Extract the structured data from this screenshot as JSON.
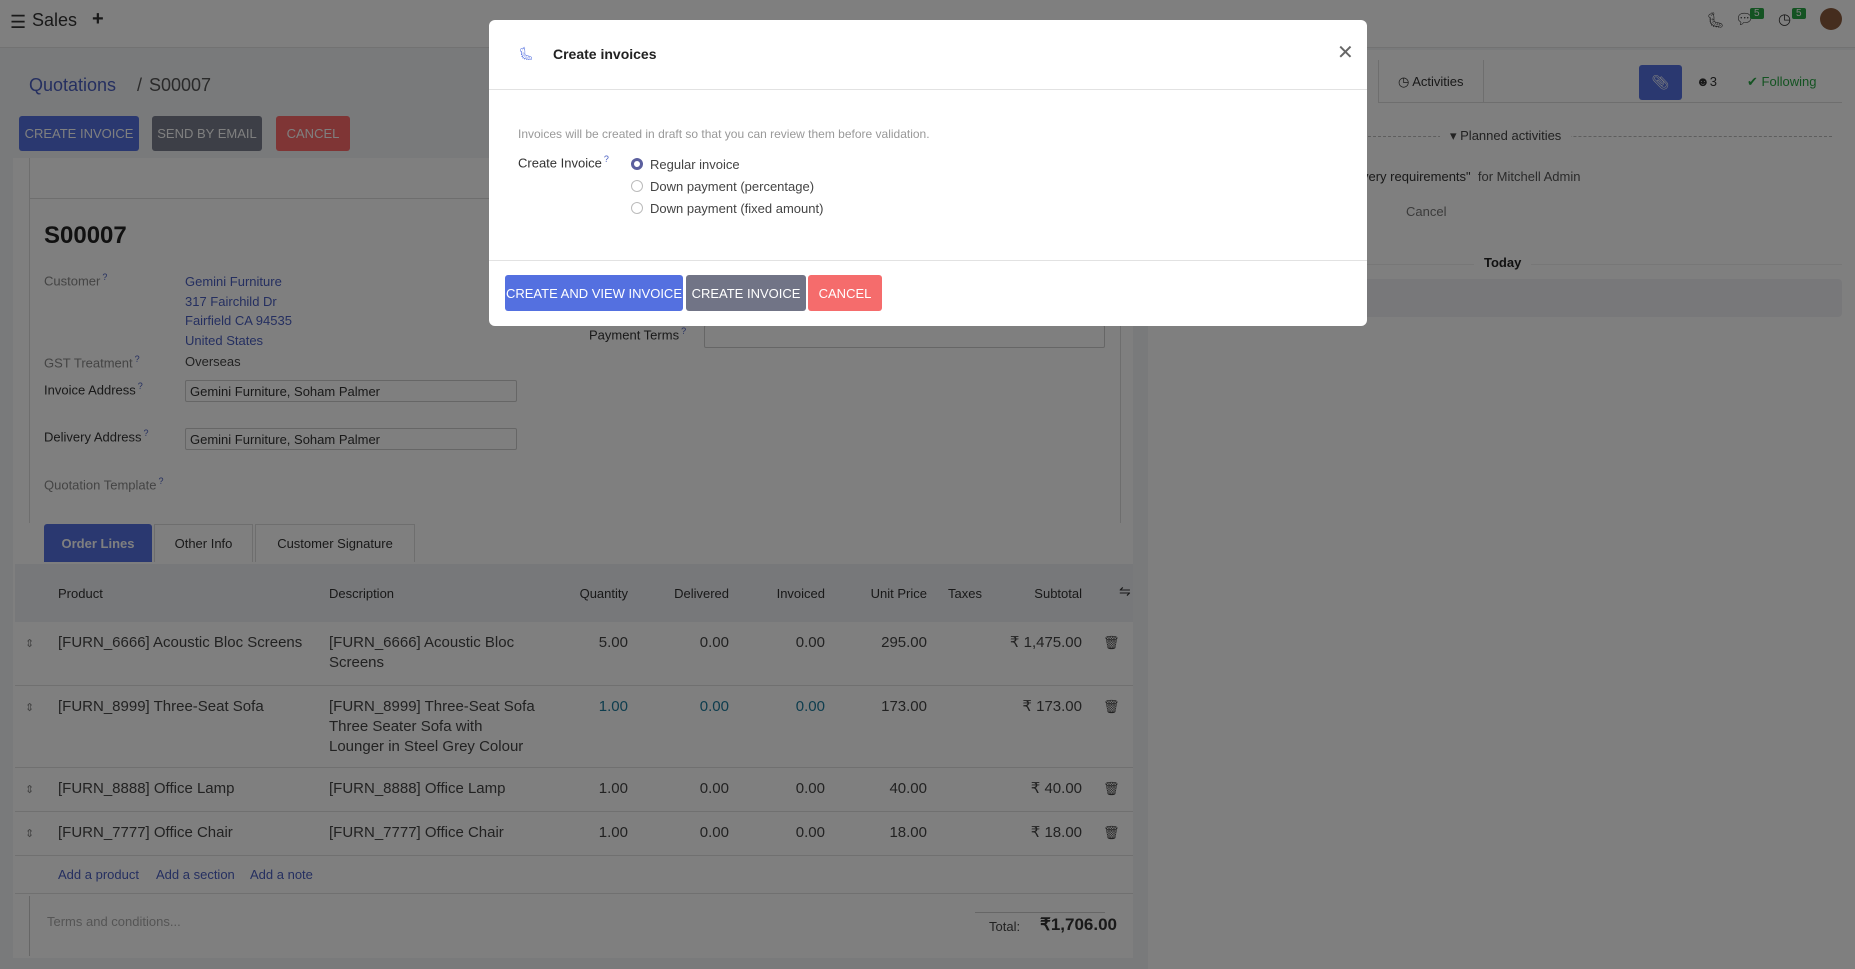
{
  "nav": {
    "app": "Sales",
    "chat_badge": "5",
    "activity_badge": "5"
  },
  "breadcrumb": {
    "parent": "Quotations",
    "current": "S00007"
  },
  "actions": {
    "create_invoice": "CREATE INVOICE",
    "send_email": "SEND BY EMAIL",
    "cancel": "CANCEL"
  },
  "form": {
    "title": "S00007",
    "customer_label": "Customer",
    "customer_lines": [
      "Gemini Furniture",
      "317 Fairchild Dr",
      "Fairfield CA 94535",
      "United States"
    ],
    "gst_label": "GST Treatment",
    "gst_value": "Overseas",
    "invoice_address_label": "Invoice Address",
    "invoice_address": "Gemini Furniture, Soham Palmer",
    "delivery_address_label": "Delivery Address",
    "delivery_address": "Gemini Furniture, Soham Palmer",
    "template_label": "Quotation Template",
    "payment_terms_label": "Payment Terms",
    "help": "?"
  },
  "tabs": [
    "Order Lines",
    "Other Info",
    "Customer Signature"
  ],
  "table": {
    "headers": [
      "Product",
      "Description",
      "Quantity",
      "Delivered",
      "Invoiced",
      "Unit Price",
      "Taxes",
      "Subtotal"
    ],
    "rows": [
      {
        "product": "[FURN_6666] Acoustic Bloc Screens",
        "description": "[FURN_6666] Acoustic Bloc Screens",
        "qty": "5.00",
        "delivered": "0.00",
        "invoiced": "0.00",
        "price": "295.00",
        "subtotal": "₹ 1,475.00"
      },
      {
        "product": "[FURN_8999] Three-Seat Sofa",
        "description": "[FURN_8999] Three-Seat Sofa Three Seater Sofa with Lounger in Steel Grey Colour",
        "qty": "1.00",
        "delivered": "0.00",
        "invoiced": "0.00",
        "price": "173.00",
        "subtotal": "₹ 173.00"
      },
      {
        "product": "[FURN_8888] Office Lamp",
        "description": "[FURN_8888] Office Lamp",
        "qty": "1.00",
        "delivered": "0.00",
        "invoiced": "0.00",
        "price": "40.00",
        "subtotal": "₹ 40.00"
      },
      {
        "product": "[FURN_7777] Office Chair",
        "description": "[FURN_7777] Office Chair",
        "qty": "1.00",
        "delivered": "0.00",
        "invoiced": "0.00",
        "price": "18.00",
        "subtotal": "₹ 18.00"
      }
    ],
    "add_product": "Add a product",
    "add_section": "Add a section",
    "add_note": "Add a note"
  },
  "footer": {
    "terms_placeholder": "Terms and conditions...",
    "total_label": "Total:",
    "total": "₹1,706.00"
  },
  "chatter": {
    "activities": "Activities",
    "followers": "3",
    "following": "Following",
    "planned": "Planned activities",
    "activity_text": "very requirements\"",
    "activity_for": "for Mitchell Admin",
    "cancel": "Cancel",
    "today": "Today"
  },
  "modal": {
    "title": "Create invoices",
    "info": "Invoices will be created in draft so that you can review them before validation.",
    "field_label": "Create Invoice",
    "help": "?",
    "options": [
      "Regular invoice",
      "Down payment (percentage)",
      "Down payment (fixed amount)"
    ],
    "selected": 0,
    "create_view": "CREATE AND VIEW INVOICE",
    "create": "CREATE INVOICE",
    "cancel": "CANCEL"
  },
  "colors": {
    "primary": "#5470e0",
    "secondary": "#717486",
    "danger": "#f56c6c",
    "link": "#4a5fc1",
    "success": "#28a745"
  }
}
